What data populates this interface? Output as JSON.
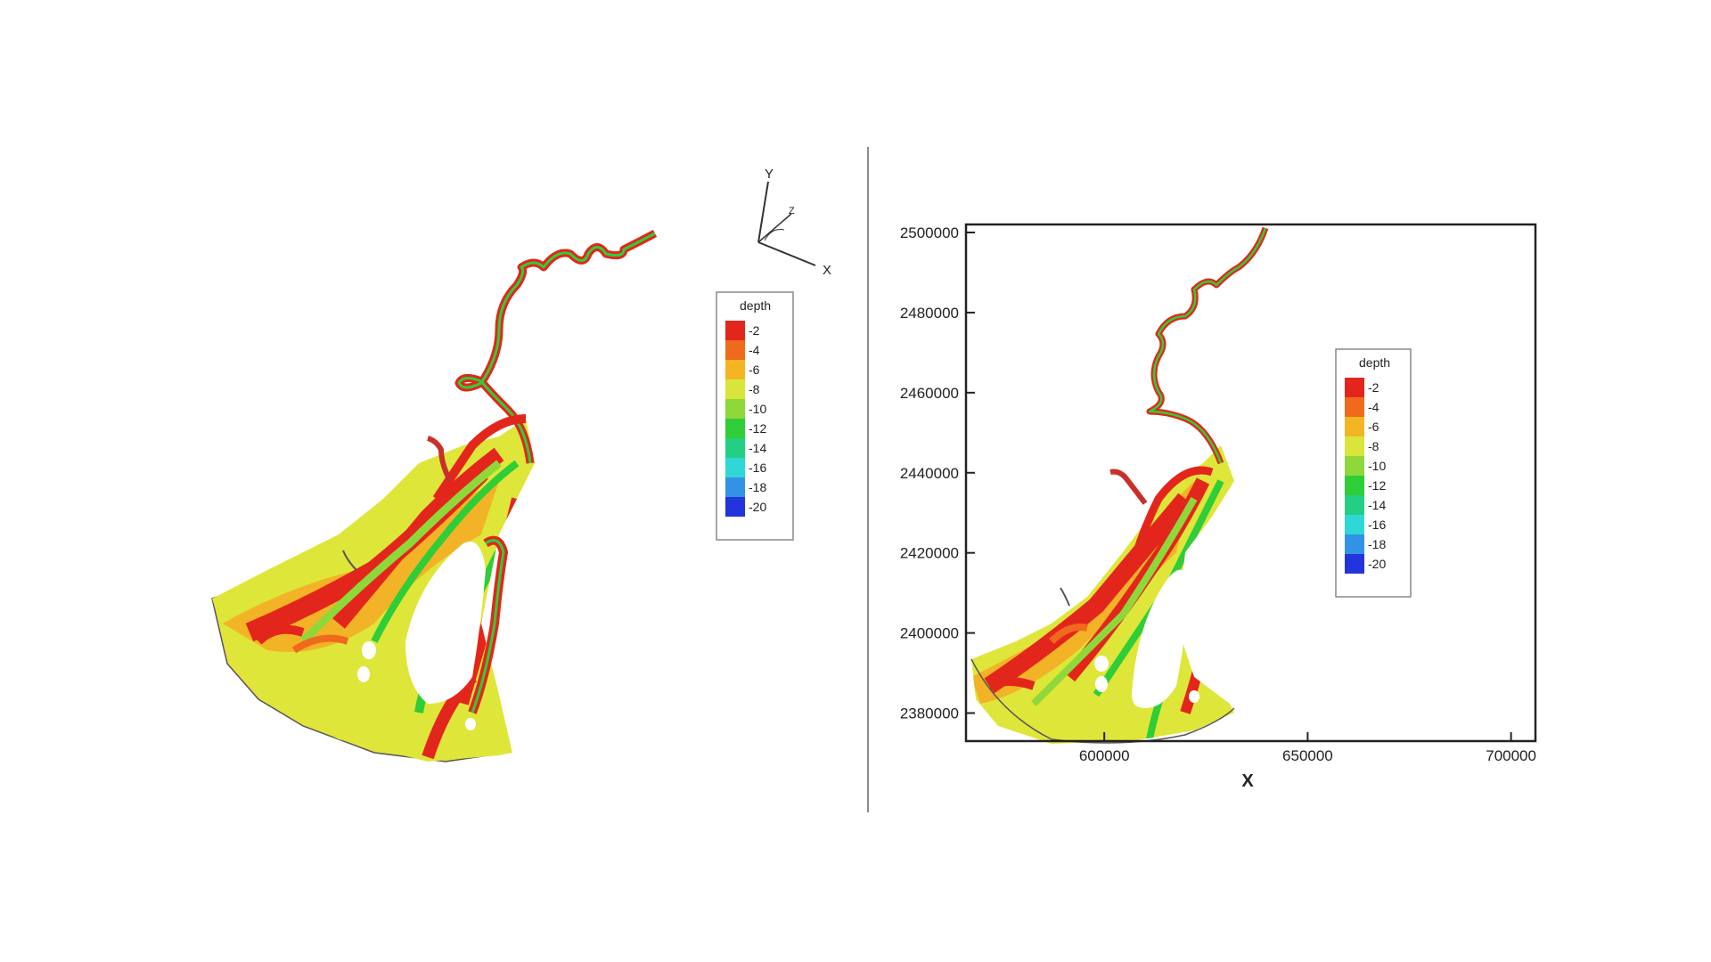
{
  "legend_left": {
    "title": "depth",
    "entries": [
      "-2",
      "-4",
      "-6",
      "-8",
      "-10",
      "-12",
      "-14",
      "-16",
      "-18",
      "-20"
    ]
  },
  "legend_right": {
    "title": "depth",
    "entries": [
      "-2",
      "-4",
      "-6",
      "-8",
      "-10",
      "-12",
      "-14",
      "-16",
      "-18",
      "-20"
    ]
  },
  "depth_colors": [
    "#e3261c",
    "#ef6a1d",
    "#f3b523",
    "#d8e53a",
    "#8fd83a",
    "#2fcd37",
    "#23d083",
    "#2fd8d6",
    "#3293e6",
    "#2234dc"
  ],
  "axes_triad": {
    "y": "Y",
    "x": "X",
    "z": "Z"
  },
  "chart_data": {
    "type": "map",
    "xlabel": "X",
    "ylabel": "",
    "xlim": [
      566000,
      706000
    ],
    "ylim": [
      2373000,
      2502000
    ],
    "x_ticks": [
      "600000",
      "650000",
      "700000"
    ],
    "y_ticks": [
      "2380000",
      "2400000",
      "2420000",
      "2440000",
      "2460000",
      "2480000",
      "2500000"
    ],
    "x_tick_values": [
      600000,
      650000,
      700000
    ],
    "y_tick_values": [
      2380000,
      2400000,
      2420000,
      2440000,
      2460000,
      2480000,
      2500000
    ]
  }
}
